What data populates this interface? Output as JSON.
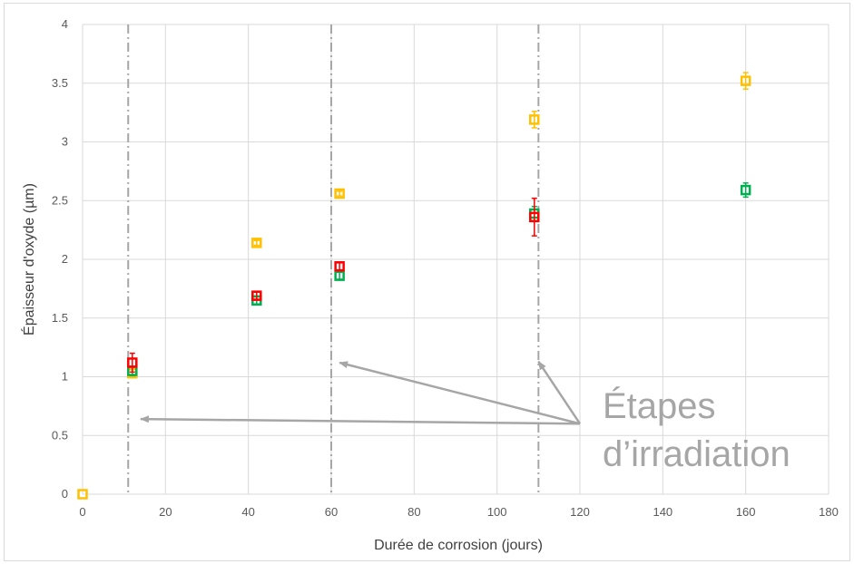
{
  "chart_data": {
    "type": "scatter",
    "title": "",
    "xlabel": "Durée de corrosion (jours)",
    "ylabel": "Épaisseur d'oxyde (µm)",
    "xlim": [
      0,
      180
    ],
    "ylim": [
      0,
      4
    ],
    "x_ticks": [
      0,
      20,
      40,
      60,
      80,
      100,
      120,
      140,
      160,
      180
    ],
    "y_ticks": [
      0,
      0.5,
      1,
      1.5,
      2,
      2.5,
      3,
      3.5,
      4
    ],
    "x_tick_labels": [
      "0",
      "20",
      "40",
      "60",
      "80",
      "100",
      "120",
      "140",
      "160",
      "180"
    ],
    "y_tick_labels": [
      "0",
      "0.5",
      "1",
      "1.5",
      "2",
      "2.5",
      "3",
      "3.5",
      "4"
    ],
    "grid": true,
    "legend": "none",
    "series": [
      {
        "color": "#ffc000",
        "points": [
          {
            "x": 0,
            "y": 0,
            "err": 0
          },
          {
            "x": 12,
            "y": 1.03,
            "err": 0.03
          },
          {
            "x": 42,
            "y": 2.14,
            "err": 0.02
          },
          {
            "x": 62,
            "y": 2.56,
            "err": 0.02
          },
          {
            "x": 109,
            "y": 3.19,
            "err": 0.07
          },
          {
            "x": 160,
            "y": 3.52,
            "err": 0.07
          }
        ]
      },
      {
        "color": "#00b050",
        "points": [
          {
            "x": 12,
            "y": 1.05,
            "err": 0.04
          },
          {
            "x": 42,
            "y": 1.65,
            "err": 0.03
          },
          {
            "x": 62,
            "y": 1.86,
            "err": 0.03
          },
          {
            "x": 109,
            "y": 2.39,
            "err": 0.06
          },
          {
            "x": 160,
            "y": 2.59,
            "err": 0.06
          }
        ]
      },
      {
        "color": "#ff0000",
        "points": [
          {
            "x": 12,
            "y": 1.12,
            "err": 0.08
          },
          {
            "x": 42,
            "y": 1.69,
            "err": 0.03
          },
          {
            "x": 62,
            "y": 1.94,
            "err": 0.03
          },
          {
            "x": 109,
            "y": 2.36,
            "err": 0.16
          }
        ]
      }
    ],
    "irradiation_steps_x": [
      11,
      60,
      110
    ],
    "annotation": {
      "line1": "Étapes",
      "line2": "d’irradiation",
      "color": "#a6a6a6",
      "source": {
        "x": 120,
        "y": 0.6
      },
      "targets": [
        {
          "x": 14,
          "y": 0.64
        },
        {
          "x": 62,
          "y": 1.12
        },
        {
          "x": 110,
          "y": 1.13
        }
      ]
    }
  }
}
